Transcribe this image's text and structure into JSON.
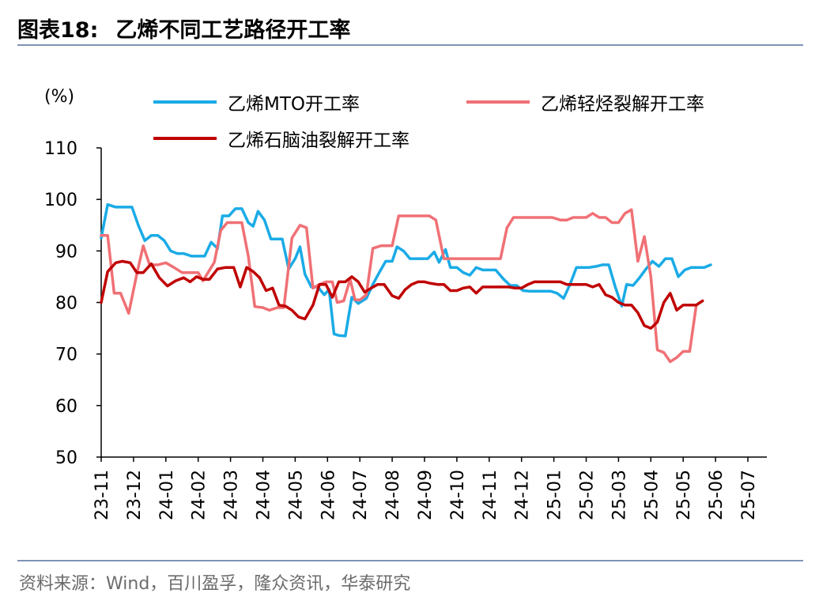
{
  "header": {
    "figure_label": "图表18:",
    "title": "乙烯不同工艺路径开工率"
  },
  "footer": {
    "source": "资料来源：Wind，百川盈孚，隆众资讯，华泰研究"
  },
  "colors": {
    "mto": "#1aabe6",
    "light_crack": "#f07075",
    "naphtha_crack": "#c00000",
    "rule": "#7f93b6"
  },
  "chart_data": {
    "type": "line",
    "ylabel": "(%)",
    "ylim": [
      50,
      110
    ],
    "yticks": [
      50,
      60,
      70,
      80,
      90,
      100,
      110
    ],
    "x_ticks": [
      "23-11",
      "23-12",
      "24-01",
      "24-02",
      "24-03",
      "24-04",
      "24-05",
      "24-06",
      "24-07",
      "24-08",
      "24-09",
      "24-10",
      "24-11",
      "24-12",
      "25-01",
      "25-02",
      "25-03",
      "25-04",
      "25-05",
      "25-06",
      "25-07"
    ],
    "x_range_months": [
      0,
      20.7
    ],
    "grid": false,
    "legend_position": "top",
    "series": [
      {
        "name": "乙烯MTO开工率",
        "color": "#1aabe6",
        "points": [
          [
            0.0,
            92.5
          ],
          [
            0.2,
            99.0
          ],
          [
            0.45,
            98.5
          ],
          [
            0.95,
            98.5
          ],
          [
            1.15,
            95.0
          ],
          [
            1.35,
            92.0
          ],
          [
            1.55,
            93.0
          ],
          [
            1.75,
            93.0
          ],
          [
            1.95,
            92.0
          ],
          [
            2.15,
            90.0
          ],
          [
            2.35,
            89.5
          ],
          [
            2.55,
            89.5
          ],
          [
            2.8,
            89.0
          ],
          [
            3.0,
            89.0
          ],
          [
            3.2,
            89.0
          ],
          [
            3.4,
            91.7
          ],
          [
            3.6,
            90.5
          ],
          [
            3.75,
            96.8
          ],
          [
            3.95,
            96.8
          ],
          [
            4.15,
            98.2
          ],
          [
            4.35,
            98.2
          ],
          [
            4.55,
            95.5
          ],
          [
            4.7,
            94.8
          ],
          [
            4.85,
            97.7
          ],
          [
            5.05,
            96.0
          ],
          [
            5.25,
            92.3
          ],
          [
            5.6,
            92.3
          ],
          [
            5.8,
            86.5
          ],
          [
            6.0,
            88.5
          ],
          [
            6.15,
            90.8
          ],
          [
            6.3,
            85.5
          ],
          [
            6.5,
            83.0
          ],
          [
            6.7,
            83.0
          ],
          [
            6.9,
            81.5
          ],
          [
            7.05,
            82.5
          ],
          [
            7.2,
            73.9
          ],
          [
            7.35,
            73.6
          ],
          [
            7.55,
            73.5
          ],
          [
            7.75,
            81.0
          ],
          [
            7.95,
            79.8
          ],
          [
            8.2,
            80.8
          ],
          [
            8.4,
            83.5
          ],
          [
            8.6,
            85.8
          ],
          [
            8.8,
            88.0
          ],
          [
            9.0,
            88.0
          ],
          [
            9.15,
            90.8
          ],
          [
            9.35,
            90.0
          ],
          [
            9.55,
            88.5
          ],
          [
            9.75,
            88.5
          ],
          [
            9.95,
            88.5
          ],
          [
            10.1,
            88.5
          ],
          [
            10.3,
            89.8
          ],
          [
            10.45,
            87.8
          ],
          [
            10.65,
            90.3
          ],
          [
            10.8,
            86.8
          ],
          [
            11.0,
            86.8
          ],
          [
            11.2,
            85.8
          ],
          [
            11.4,
            85.3
          ],
          [
            11.6,
            86.8
          ],
          [
            11.8,
            86.3
          ],
          [
            12.0,
            86.3
          ],
          [
            12.2,
            86.3
          ],
          [
            12.45,
            84.5
          ],
          [
            12.65,
            83.3
          ],
          [
            12.85,
            83.3
          ],
          [
            13.05,
            82.3
          ],
          [
            13.25,
            82.2
          ],
          [
            13.45,
            82.2
          ],
          [
            13.65,
            82.2
          ],
          [
            13.9,
            82.2
          ],
          [
            14.1,
            81.8
          ],
          [
            14.3,
            80.8
          ],
          [
            14.5,
            83.5
          ],
          [
            14.7,
            86.8
          ],
          [
            14.9,
            86.8
          ],
          [
            15.1,
            86.8
          ],
          [
            15.3,
            87.0
          ],
          [
            15.5,
            87.3
          ],
          [
            15.7,
            87.3
          ],
          [
            15.9,
            83.0
          ],
          [
            16.1,
            79.3
          ],
          [
            16.25,
            83.5
          ],
          [
            16.45,
            83.3
          ],
          [
            16.65,
            84.8
          ],
          [
            16.85,
            86.5
          ],
          [
            17.05,
            88.0
          ],
          [
            17.25,
            87.0
          ],
          [
            17.45,
            88.5
          ],
          [
            17.65,
            88.5
          ],
          [
            17.85,
            85.0
          ],
          [
            18.05,
            86.3
          ],
          [
            18.25,
            86.8
          ],
          [
            18.45,
            86.8
          ],
          [
            18.65,
            86.8
          ],
          [
            18.85,
            87.3
          ]
        ]
      },
      {
        "name": "乙烯轻烃裂解开工率",
        "color": "#f07075",
        "points": [
          [
            0.0,
            93.0
          ],
          [
            0.2,
            93.0
          ],
          [
            0.4,
            81.8
          ],
          [
            0.6,
            81.8
          ],
          [
            0.85,
            77.9
          ],
          [
            1.1,
            85.5
          ],
          [
            1.3,
            91.0
          ],
          [
            1.5,
            87.3
          ],
          [
            1.75,
            87.3
          ],
          [
            2.0,
            87.7
          ],
          [
            2.25,
            86.8
          ],
          [
            2.5,
            85.8
          ],
          [
            2.75,
            85.8
          ],
          [
            3.0,
            85.8
          ],
          [
            3.15,
            84.2
          ],
          [
            3.5,
            87.8
          ],
          [
            3.7,
            94.0
          ],
          [
            3.9,
            95.5
          ],
          [
            4.1,
            95.5
          ],
          [
            4.35,
            95.5
          ],
          [
            4.55,
            89.0
          ],
          [
            4.75,
            79.2
          ],
          [
            5.0,
            79.0
          ],
          [
            5.2,
            78.5
          ],
          [
            5.45,
            79.0
          ],
          [
            5.65,
            79.0
          ],
          [
            5.9,
            92.5
          ],
          [
            6.15,
            95.0
          ],
          [
            6.35,
            94.5
          ],
          [
            6.55,
            82.8
          ],
          [
            6.75,
            83.5
          ],
          [
            6.95,
            84.0
          ],
          [
            7.15,
            84.0
          ],
          [
            7.3,
            80.0
          ],
          [
            7.5,
            80.3
          ],
          [
            7.7,
            84.5
          ],
          [
            7.85,
            80.5
          ],
          [
            8.0,
            80.5
          ],
          [
            8.2,
            81.5
          ],
          [
            8.4,
            90.5
          ],
          [
            8.65,
            91.0
          ],
          [
            8.85,
            91.0
          ],
          [
            9.0,
            91.0
          ],
          [
            9.2,
            96.8
          ],
          [
            9.45,
            96.8
          ],
          [
            9.7,
            96.8
          ],
          [
            9.95,
            96.8
          ],
          [
            10.15,
            96.8
          ],
          [
            10.35,
            96.0
          ],
          [
            10.6,
            88.5
          ],
          [
            10.85,
            88.5
          ],
          [
            11.1,
            88.5
          ],
          [
            11.35,
            88.5
          ],
          [
            11.6,
            88.5
          ],
          [
            11.9,
            88.5
          ],
          [
            12.1,
            88.5
          ],
          [
            12.35,
            88.5
          ],
          [
            12.55,
            94.5
          ],
          [
            12.75,
            96.5
          ],
          [
            12.95,
            96.5
          ],
          [
            13.2,
            96.5
          ],
          [
            13.45,
            96.5
          ],
          [
            13.7,
            96.5
          ],
          [
            13.95,
            96.5
          ],
          [
            14.2,
            96.0
          ],
          [
            14.4,
            96.0
          ],
          [
            14.6,
            96.5
          ],
          [
            14.8,
            96.5
          ],
          [
            15.0,
            96.5
          ],
          [
            15.2,
            97.3
          ],
          [
            15.4,
            96.5
          ],
          [
            15.6,
            96.5
          ],
          [
            15.8,
            95.5
          ],
          [
            16.0,
            95.5
          ],
          [
            16.2,
            97.3
          ],
          [
            16.4,
            98.0
          ],
          [
            16.6,
            88.0
          ],
          [
            16.8,
            92.8
          ],
          [
            17.0,
            85.0
          ],
          [
            17.2,
            70.8
          ],
          [
            17.4,
            70.3
          ],
          [
            17.6,
            68.5
          ],
          [
            17.8,
            69.3
          ],
          [
            18.0,
            70.5
          ],
          [
            18.2,
            70.5
          ],
          [
            18.4,
            79.3
          ]
        ]
      },
      {
        "name": "乙烯石脑油裂解开工率",
        "color": "#c00000",
        "points": [
          [
            0.0,
            80.0
          ],
          [
            0.2,
            86.0
          ],
          [
            0.45,
            87.7
          ],
          [
            0.65,
            88.0
          ],
          [
            0.9,
            87.7
          ],
          [
            1.1,
            85.8
          ],
          [
            1.3,
            85.8
          ],
          [
            1.55,
            87.5
          ],
          [
            1.8,
            84.8
          ],
          [
            2.05,
            83.2
          ],
          [
            2.3,
            84.2
          ],
          [
            2.55,
            84.8
          ],
          [
            2.75,
            84.0
          ],
          [
            2.95,
            85.0
          ],
          [
            3.15,
            84.5
          ],
          [
            3.35,
            84.5
          ],
          [
            3.6,
            86.5
          ],
          [
            3.85,
            86.8
          ],
          [
            4.1,
            86.8
          ],
          [
            4.3,
            83.0
          ],
          [
            4.5,
            86.8
          ],
          [
            4.7,
            86.0
          ],
          [
            4.9,
            84.8
          ],
          [
            5.1,
            82.3
          ],
          [
            5.3,
            82.8
          ],
          [
            5.5,
            79.5
          ],
          [
            5.7,
            79.3
          ],
          [
            5.9,
            78.5
          ],
          [
            6.1,
            77.2
          ],
          [
            6.3,
            76.8
          ],
          [
            6.55,
            79.5
          ],
          [
            6.75,
            83.5
          ],
          [
            6.95,
            83.5
          ],
          [
            7.15,
            81.0
          ],
          [
            7.35,
            84.0
          ],
          [
            7.55,
            84.0
          ],
          [
            7.75,
            85.0
          ],
          [
            7.95,
            84.0
          ],
          [
            8.15,
            82.0
          ],
          [
            8.35,
            82.8
          ],
          [
            8.55,
            83.5
          ],
          [
            8.75,
            83.5
          ],
          [
            9.0,
            81.3
          ],
          [
            9.2,
            80.8
          ],
          [
            9.4,
            82.5
          ],
          [
            9.6,
            83.5
          ],
          [
            9.8,
            84.0
          ],
          [
            10.0,
            84.0
          ],
          [
            10.2,
            83.7
          ],
          [
            10.4,
            83.5
          ],
          [
            10.6,
            83.5
          ],
          [
            10.8,
            82.3
          ],
          [
            11.0,
            82.3
          ],
          [
            11.2,
            82.8
          ],
          [
            11.4,
            83.0
          ],
          [
            11.6,
            81.8
          ],
          [
            11.8,
            83.0
          ],
          [
            12.0,
            83.0
          ],
          [
            12.2,
            83.0
          ],
          [
            12.4,
            83.0
          ],
          [
            12.6,
            83.0
          ],
          [
            12.8,
            82.8
          ],
          [
            13.0,
            82.8
          ],
          [
            13.2,
            83.5
          ],
          [
            13.4,
            84.0
          ],
          [
            13.6,
            84.0
          ],
          [
            13.8,
            84.0
          ],
          [
            14.0,
            84.0
          ],
          [
            14.2,
            84.0
          ],
          [
            14.4,
            83.5
          ],
          [
            14.6,
            83.5
          ],
          [
            14.8,
            83.5
          ],
          [
            15.0,
            83.5
          ],
          [
            15.2,
            83.0
          ],
          [
            15.4,
            83.5
          ],
          [
            15.6,
            81.5
          ],
          [
            15.8,
            81.0
          ],
          [
            16.0,
            80.0
          ],
          [
            16.2,
            79.5
          ],
          [
            16.4,
            79.5
          ],
          [
            16.6,
            78.0
          ],
          [
            16.8,
            75.5
          ],
          [
            17.0,
            75.0
          ],
          [
            17.2,
            76.2
          ],
          [
            17.4,
            80.0
          ],
          [
            17.6,
            81.8
          ],
          [
            17.8,
            78.5
          ],
          [
            18.0,
            79.5
          ],
          [
            18.2,
            79.5
          ],
          [
            18.4,
            79.5
          ],
          [
            18.6,
            80.3
          ]
        ]
      }
    ]
  }
}
